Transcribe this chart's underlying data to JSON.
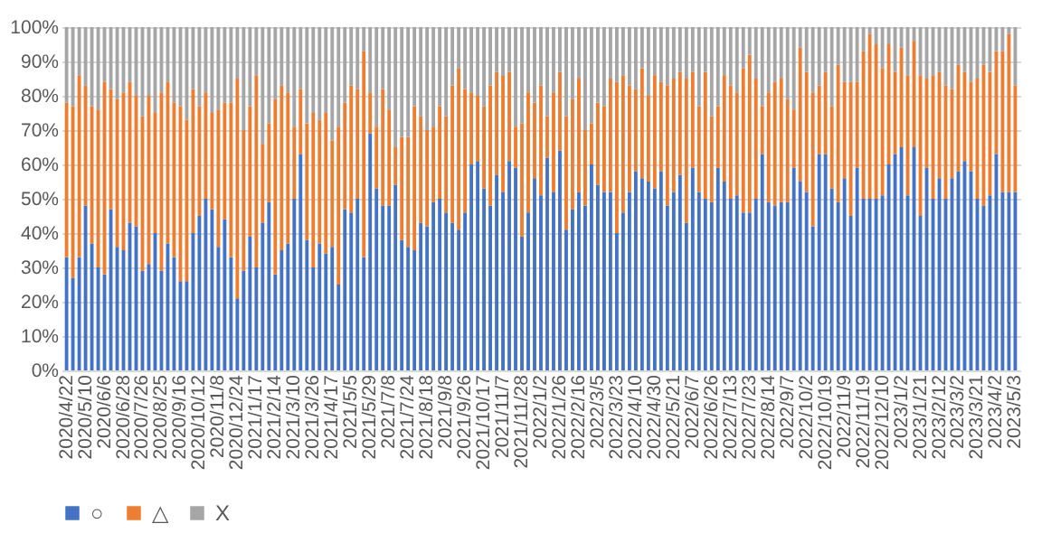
{
  "chart_data": {
    "type": "bar",
    "stacked": true,
    "categories": [
      "2020/4/22",
      null,
      null,
      "2020/5/10",
      null,
      null,
      "2020/6/6",
      null,
      null,
      "2020/6/28",
      null,
      null,
      "2020/7/26",
      null,
      null,
      "2020/8/25",
      null,
      null,
      "2020/9/16",
      null,
      null,
      "2020/10/12",
      null,
      null,
      "2020/11/8",
      null,
      null,
      "2020/12/24",
      null,
      null,
      "2021/1/17",
      null,
      null,
      "2021/2/14",
      null,
      null,
      "2021/3/10",
      null,
      null,
      "2021/3/26",
      null,
      null,
      "2021/4/17",
      null,
      null,
      "2021/5/5",
      null,
      null,
      "2021/5/29",
      null,
      null,
      "2021/7/8",
      null,
      null,
      "2021/7/24",
      null,
      null,
      "2021/8/18",
      null,
      null,
      "2021/9/8",
      null,
      null,
      "2021/9/26",
      null,
      null,
      "2021/10/17",
      null,
      null,
      "2021/11/7",
      null,
      null,
      "2021/11/28",
      null,
      null,
      "2022/1/2",
      null,
      null,
      "2022/1/26",
      null,
      null,
      "2022/2/16",
      null,
      null,
      "2022/3/5",
      null,
      null,
      "2022/3/23",
      null,
      null,
      "2022/4/10",
      null,
      null,
      "2022/4/30",
      null,
      null,
      "2022/5/21",
      null,
      null,
      "2022/6/7",
      null,
      null,
      "2022/6/26",
      null,
      null,
      "2022/7/13",
      null,
      null,
      "2022/7/23",
      null,
      null,
      "2022/8/14",
      null,
      null,
      "2022/9/7",
      null,
      null,
      "2022/10/2",
      null,
      null,
      "2022/10/19",
      null,
      null,
      "2022/11/9",
      null,
      null,
      "2022/11/19",
      null,
      null,
      "2022/12/10",
      null,
      null,
      "2023/1/2",
      null,
      null,
      "2023/1/21",
      null,
      null,
      "2023/2/12",
      null,
      null,
      "2023/3/2",
      null,
      null,
      "2023/3/21",
      null,
      null,
      "2023/4/2",
      null,
      null,
      "2023/5/3"
    ],
    "series": [
      {
        "name": "○",
        "color": "#4472c4",
        "values": [
          33,
          27,
          33,
          48,
          37,
          30,
          28,
          47,
          36,
          35,
          43,
          42,
          29,
          31,
          40,
          29,
          37,
          33,
          26,
          26,
          40,
          45,
          50,
          47,
          36,
          44,
          33,
          21,
          29,
          39,
          30,
          43,
          49,
          28,
          35,
          37,
          50,
          63,
          38,
          30,
          37,
          34,
          36,
          25,
          47,
          46,
          50,
          33,
          69,
          53,
          48,
          48,
          54,
          38,
          36,
          35,
          43,
          42,
          49,
          50,
          46,
          43,
          41,
          46,
          60,
          61,
          53,
          48,
          57,
          52,
          61,
          59,
          39,
          46,
          56,
          51,
          62,
          52,
          64,
          41,
          47,
          52,
          48,
          60,
          54,
          52,
          52,
          40,
          46,
          52,
          58,
          56,
          55,
          53,
          58,
          48,
          52,
          57,
          43,
          59,
          52,
          50,
          49,
          59,
          55,
          50,
          51,
          46,
          46,
          50,
          63,
          49,
          48,
          49,
          49,
          59,
          55,
          52,
          42,
          63,
          63,
          53,
          49,
          56,
          45,
          59,
          50,
          50,
          50,
          51,
          60,
          63,
          65,
          51,
          65,
          45,
          59,
          50,
          56,
          50,
          56,
          58,
          61,
          58,
          50,
          48,
          51,
          63,
          52,
          52,
          52
        ]
      },
      {
        "name": "△",
        "color": "#ed7d31",
        "values": [
          45,
          50,
          53,
          35,
          40,
          46,
          56,
          35,
          43,
          46,
          41,
          38,
          45,
          49,
          35,
          52,
          47,
          45,
          51,
          47,
          42,
          32,
          31,
          28,
          40,
          34,
          45,
          64,
          41,
          38,
          56,
          23,
          23,
          51,
          48,
          44,
          21,
          19,
          34,
          45,
          36,
          41,
          31,
          46,
          31,
          37,
          32,
          60,
          12,
          18,
          34,
          28,
          11,
          30,
          32,
          42,
          31,
          28,
          22,
          27,
          28,
          40,
          47,
          36,
          21,
          19,
          24,
          35,
          30,
          34,
          26,
          12,
          33,
          35,
          22,
          32,
          12,
          29,
          23,
          33,
          32,
          33,
          22,
          12,
          24,
          25,
          33,
          44,
          40,
          31,
          24,
          32,
          25,
          33,
          26,
          35,
          33,
          30,
          42,
          28,
          25,
          37,
          25,
          18,
          31,
          33,
          30,
          42,
          46,
          35,
          14,
          32,
          36,
          36,
          30,
          17,
          39,
          35,
          39,
          20,
          24,
          24,
          40,
          28,
          39,
          25,
          43,
          48,
          45,
          37,
          35,
          24,
          29,
          35,
          31,
          41,
          26,
          36,
          31,
          33,
          26,
          31,
          26,
          26,
          35,
          41,
          36,
          30,
          41,
          46,
          31
        ]
      },
      {
        "name": "X",
        "color": "#a5a5a5",
        "values": [
          22,
          23,
          14,
          17,
          23,
          24,
          16,
          18,
          21,
          19,
          16,
          20,
          26,
          20,
          25,
          19,
          16,
          22,
          23,
          27,
          18,
          23,
          19,
          25,
          24,
          22,
          22,
          15,
          30,
          23,
          14,
          34,
          28,
          21,
          17,
          19,
          29,
          18,
          28,
          25,
          27,
          25,
          33,
          29,
          22,
          17,
          18,
          7,
          19,
          29,
          18,
          24,
          35,
          32,
          32,
          23,
          26,
          30,
          29,
          23,
          26,
          17,
          12,
          18,
          19,
          20,
          23,
          17,
          13,
          14,
          13,
          29,
          28,
          19,
          22,
          17,
          26,
          19,
          13,
          26,
          21,
          15,
          30,
          28,
          22,
          23,
          15,
          16,
          14,
          17,
          18,
          12,
          20,
          14,
          16,
          17,
          15,
          13,
          15,
          13,
          23,
          13,
          26,
          23,
          14,
          17,
          19,
          12,
          8,
          15,
          23,
          19,
          16,
          15,
          21,
          24,
          6,
          13,
          19,
          17,
          13,
          23,
          11,
          16,
          16,
          16,
          7,
          2,
          5,
          12,
          5,
          13,
          6,
          14,
          4,
          14,
          15,
          14,
          13,
          17,
          18,
          11,
          13,
          16,
          15,
          11,
          13,
          7,
          7,
          2,
          17
        ]
      }
    ],
    "ylim": [
      0,
      100
    ],
    "yticks": [
      {
        "value": 0,
        "label": "0%"
      },
      {
        "value": 10,
        "label": "10%"
      },
      {
        "value": 20,
        "label": "20%"
      },
      {
        "value": 30,
        "label": "30%"
      },
      {
        "value": 40,
        "label": "40%"
      },
      {
        "value": 50,
        "label": "50%"
      },
      {
        "value": 60,
        "label": "60%"
      },
      {
        "value": 70,
        "label": "70%"
      },
      {
        "value": 80,
        "label": "80%"
      },
      {
        "value": 90,
        "label": "90%"
      },
      {
        "value": 100,
        "label": "100%"
      }
    ],
    "grid": "y",
    "legend": "bottom"
  }
}
